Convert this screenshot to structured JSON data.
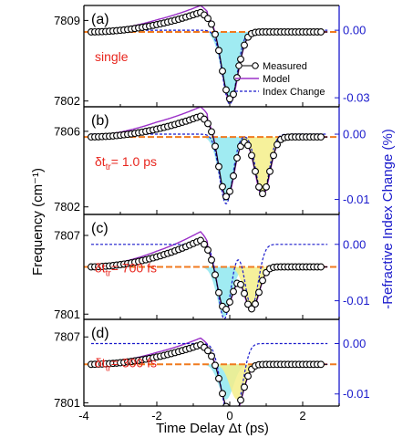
{
  "chart_data": {
    "type": "line",
    "xlabel": "Time Delay Δt (ps)",
    "ylabel": "Frequency (cm⁻¹)",
    "y2label": "-Refractive Index Change (%)",
    "xlim": [
      -4,
      3
    ],
    "xticks": [
      "-4",
      "-2",
      "0",
      "2"
    ],
    "legend": {
      "position": "right",
      "entries": [
        "Measured",
        "Model",
        "Index Change"
      ]
    },
    "colors": {
      "measured": "#000000",
      "model": "#9b30c8",
      "index_change": "#1a1acc",
      "baseline": "#f07a1f",
      "fill_first": "#8fe8f0",
      "fill_second": "#f4ee8a",
      "note": "#e8261e",
      "right_axis": "#1a1acc"
    },
    "panels": [
      {
        "label": "(a)",
        "note": "single",
        "note_sub": "",
        "note_value": "",
        "baseline": 7808,
        "ylim": [
          7801.5,
          7810.3
        ],
        "yticks": [
          "7809",
          "7802"
        ],
        "y2lim": [
          -0.034,
          0.011
        ],
        "y2ticks": [
          "0.00",
          "-0.03"
        ],
        "pulses": [
          {
            "center": 0.0,
            "amp": 6.0,
            "sigma": 0.22
          }
        ],
        "rise": {
          "amp": 2.0
        },
        "show_legend": true
      },
      {
        "label": "(b)",
        "note": "δt",
        "note_sub": "tr",
        "note_value": "= 1.0 ps",
        "baseline": 7805.7,
        "ylim": [
          7801.6,
          7807.3
        ],
        "yticks": [
          "7806",
          "7802"
        ],
        "y2lim": [
          -0.0123,
          0.0042
        ],
        "y2ticks": [
          "0.00",
          "-0.01"
        ],
        "pulses": [
          {
            "center": -0.1,
            "amp": 3.4,
            "sigma": 0.2
          },
          {
            "center": 0.9,
            "amp": 3.0,
            "sigma": 0.2
          }
        ],
        "rise": {
          "amp": 1.3
        },
        "show_legend": false
      },
      {
        "label": "(c)",
        "note": "δt",
        "note_sub": "tr",
        "note_value": "= 700 fs",
        "baseline": 7804.6,
        "ylim": [
          7800.6,
          7808.6
        ],
        "yticks": [
          "7807",
          "7801"
        ],
        "y2lim": [
          -0.0133,
          0.0053
        ],
        "y2ticks": [
          "0.00",
          "-0.01"
        ],
        "pulses": [
          {
            "center": -0.15,
            "amp": 3.8,
            "sigma": 0.2
          },
          {
            "center": 0.6,
            "amp": 3.2,
            "sigma": 0.2
          }
        ],
        "rise": {
          "amp": 2.4
        },
        "show_legend": false
      },
      {
        "label": "(d)",
        "note": "δt",
        "note_sub": "tr",
        "note_value": "= 300 fs",
        "baseline": 7804.5,
        "ylim": [
          7800.7,
          7808.6
        ],
        "yticks": [
          "7807",
          "7801"
        ],
        "y2lim": [
          -0.0124,
          0.0048
        ],
        "y2ticks": [
          "0.00",
          "-0.01"
        ],
        "pulses": [
          {
            "center": -0.1,
            "amp": 3.2,
            "sigma": 0.2
          },
          {
            "center": 0.2,
            "amp": 3.2,
            "sigma": 0.2
          }
        ],
        "rise": {
          "amp": 2.1
        },
        "show_legend": false
      }
    ]
  }
}
